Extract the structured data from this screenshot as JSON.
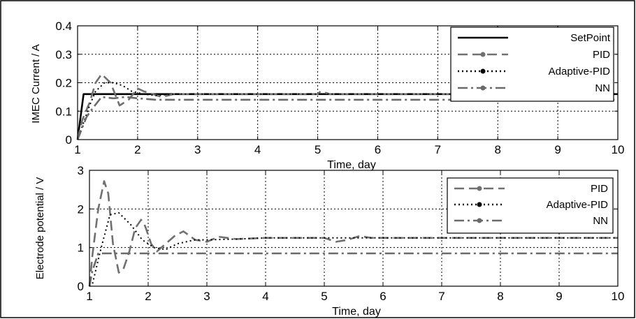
{
  "chart_data": [
    {
      "type": "line",
      "xlabel": "Time, day",
      "ylabel": "IMEC Current / A",
      "xlim": [
        1,
        10
      ],
      "ylim": [
        0,
        0.4
      ],
      "xticks": [
        "1",
        "2",
        "3",
        "4",
        "5",
        "6",
        "7",
        "8",
        "9",
        "10"
      ],
      "yticks": [
        "0",
        "0.1",
        "0.2",
        "0.3",
        "0.4"
      ],
      "grid": true,
      "legend_position": "top-right",
      "series": [
        {
          "name": "SetPoint",
          "color": "#000000",
          "style": "solid",
          "marker": "none",
          "x": [
            1.0,
            1.1,
            10.0
          ],
          "y": [
            0.0,
            0.16,
            0.16
          ]
        },
        {
          "name": "PID",
          "color": "#707070",
          "style": "dashed",
          "marker": "dot",
          "x": [
            1.0,
            1.08,
            1.2,
            1.3,
            1.4,
            1.55,
            1.7,
            1.85,
            2.0,
            2.1,
            2.25,
            2.4,
            2.6,
            2.8,
            3.0,
            3.5,
            4.0,
            4.5,
            5.0,
            5.05,
            5.2,
            5.6,
            6.0,
            7.0,
            8.0,
            9.0,
            10.0
          ],
          "y": [
            0.0,
            0.07,
            0.13,
            0.2,
            0.23,
            0.2,
            0.12,
            0.14,
            0.18,
            0.17,
            0.16,
            0.15,
            0.16,
            0.16,
            0.16,
            0.16,
            0.16,
            0.16,
            0.16,
            0.17,
            0.16,
            0.16,
            0.16,
            0.16,
            0.16,
            0.16,
            0.16
          ]
        },
        {
          "name": "Adaptive-PID",
          "color": "#000000",
          "style": "dotted",
          "marker": "dot",
          "x": [
            1.0,
            1.1,
            1.2,
            1.3,
            1.45,
            1.6,
            1.75,
            1.9,
            2.1,
            2.3,
            2.6,
            3.0,
            3.5,
            4.0,
            5.0,
            6.0,
            7.0,
            8.0,
            9.0,
            10.0
          ],
          "y": [
            0.0,
            0.06,
            0.12,
            0.17,
            0.2,
            0.2,
            0.19,
            0.17,
            0.16,
            0.155,
            0.16,
            0.16,
            0.16,
            0.16,
            0.16,
            0.16,
            0.16,
            0.16,
            0.16,
            0.16
          ]
        },
        {
          "name": "NN",
          "color": "#6a6a6a",
          "style": "dashdot",
          "marker": "dot",
          "x": [
            1.0,
            1.15,
            1.25,
            1.4,
            1.6,
            1.8,
            2.0,
            2.3,
            3.0,
            4.0,
            5.0,
            5.5,
            6.0,
            7.0,
            8.0,
            9.0,
            10.0
          ],
          "y": [
            0.0,
            0.08,
            0.11,
            0.15,
            0.145,
            0.15,
            0.145,
            0.14,
            0.14,
            0.14,
            0.14,
            0.14,
            0.14,
            0.14,
            0.14,
            0.14,
            0.14
          ]
        }
      ]
    },
    {
      "type": "line",
      "xlabel": "Time, day",
      "ylabel": "Electrode potential / V",
      "xlim": [
        1,
        10
      ],
      "ylim": [
        0,
        3
      ],
      "xticks": [
        "1",
        "2",
        "3",
        "4",
        "5",
        "6",
        "7",
        "8",
        "9",
        "10"
      ],
      "yticks": [
        "0",
        "1",
        "2",
        "3"
      ],
      "grid": true,
      "legend_position": "top-right",
      "series": [
        {
          "name": "PID",
          "color": "#707070",
          "style": "dashed",
          "marker": "dot",
          "x": [
            1.0,
            1.05,
            1.15,
            1.25,
            1.32,
            1.4,
            1.5,
            1.58,
            1.68,
            1.78,
            1.88,
            1.95,
            2.05,
            2.15,
            2.3,
            2.45,
            2.6,
            2.8,
            3.0,
            3.2,
            3.5,
            4.0,
            5.0,
            5.2,
            5.4,
            5.6,
            5.8,
            6.0,
            7.0,
            8.0,
            9.0,
            10.0
          ],
          "y": [
            0.0,
            0.8,
            2.0,
            2.72,
            2.4,
            1.1,
            0.35,
            0.45,
            0.9,
            1.5,
            1.72,
            1.55,
            1.1,
            0.9,
            1.1,
            1.3,
            1.42,
            1.2,
            1.15,
            1.28,
            1.22,
            1.25,
            1.25,
            1.15,
            1.2,
            1.3,
            1.25,
            1.25,
            1.25,
            1.25,
            1.25,
            1.25
          ]
        },
        {
          "name": "Adaptive-PID",
          "color": "#000000",
          "style": "dotted",
          "marker": "dot",
          "x": [
            1.0,
            1.05,
            1.2,
            1.35,
            1.5,
            1.7,
            1.9,
            2.1,
            2.3,
            2.5,
            2.8,
            3.0,
            3.5,
            4.0,
            5.0,
            6.0,
            7.0,
            8.0,
            9.0,
            10.0
          ],
          "y": [
            0.0,
            0.05,
            1.0,
            1.85,
            1.9,
            1.6,
            1.2,
            1.0,
            0.95,
            1.1,
            1.2,
            1.2,
            1.22,
            1.25,
            1.25,
            1.25,
            1.25,
            1.25,
            1.25,
            1.25
          ]
        },
        {
          "name": "NN",
          "color": "#6a6a6a",
          "style": "dashdot",
          "marker": "dot",
          "x": [
            1.0,
            1.05,
            1.15,
            1.3,
            1.6,
            2.0,
            3.0,
            4.0,
            5.0,
            6.0,
            7.0,
            8.0,
            9.0,
            10.0
          ],
          "y": [
            0.0,
            0.4,
            0.85,
            0.85,
            0.85,
            0.85,
            0.85,
            0.85,
            0.85,
            0.85,
            0.85,
            0.85,
            0.85,
            0.85
          ]
        }
      ]
    }
  ]
}
